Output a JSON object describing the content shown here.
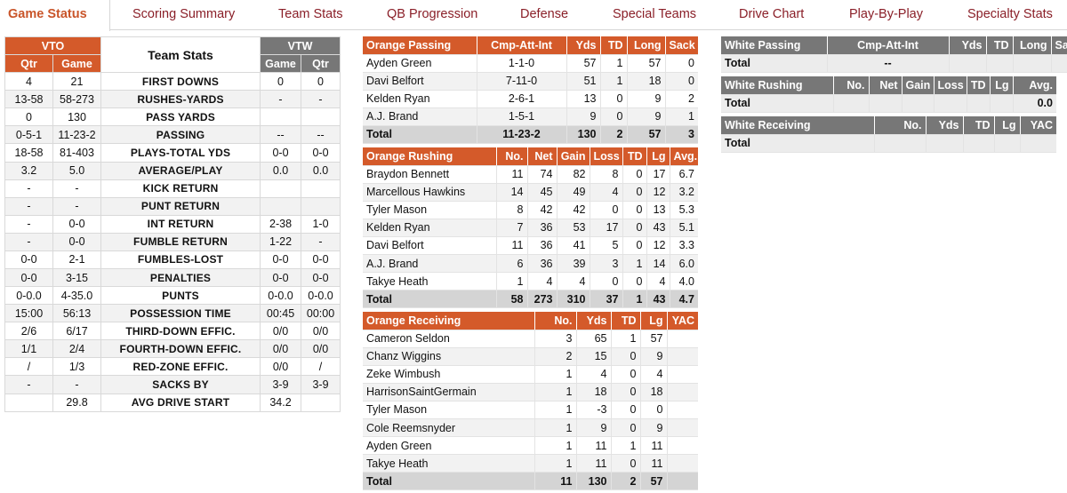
{
  "tabs": [
    {
      "label": "Game Status",
      "active": true
    },
    {
      "label": "Scoring Summary"
    },
    {
      "label": "Team Stats"
    },
    {
      "label": "QB Progression"
    },
    {
      "label": "Defense"
    },
    {
      "label": "Special Teams"
    },
    {
      "label": "Drive Chart"
    },
    {
      "label": "Play-By-Play"
    },
    {
      "label": "Specialty Stats"
    }
  ],
  "team_stats": {
    "title": "Team Stats",
    "home": {
      "abbr": "VTO",
      "qtr_label": "Qtr",
      "game_label": "Game"
    },
    "away": {
      "abbr": "VTW",
      "game_label": "Game",
      "qtr_label": "Qtr"
    },
    "rows": [
      {
        "hq": "4",
        "hg": "21",
        "label": "FIRST DOWNS",
        "ag": "0",
        "aq": "0"
      },
      {
        "hq": "13-58",
        "hg": "58-273",
        "label": "RUSHES-YARDS",
        "ag": "-",
        "aq": "-"
      },
      {
        "hq": "0",
        "hg": "130",
        "label": "PASS YARDS",
        "ag": "",
        "aq": ""
      },
      {
        "hq": "0-5-1",
        "hg": "11-23-2",
        "label": "PASSING",
        "ag": "--",
        "aq": "--"
      },
      {
        "hq": "18-58",
        "hg": "81-403",
        "label": "PLAYS-TOTAL YDS",
        "ag": "0-0",
        "aq": "0-0"
      },
      {
        "hq": "3.2",
        "hg": "5.0",
        "label": "AVERAGE/PLAY",
        "ag": "0.0",
        "aq": "0.0"
      },
      {
        "hq": "-",
        "hg": "-",
        "label": "KICK RETURN",
        "ag": "",
        "aq": ""
      },
      {
        "hq": "-",
        "hg": "-",
        "label": "PUNT RETURN",
        "ag": "",
        "aq": ""
      },
      {
        "hq": "-",
        "hg": "0-0",
        "label": "INT RETURN",
        "ag": "2-38",
        "aq": "1-0"
      },
      {
        "hq": "-",
        "hg": "0-0",
        "label": "FUMBLE RETURN",
        "ag": "1-22",
        "aq": "-"
      },
      {
        "hq": "0-0",
        "hg": "2-1",
        "label": "FUMBLES-LOST",
        "ag": "0-0",
        "aq": "0-0"
      },
      {
        "hq": "0-0",
        "hg": "3-15",
        "label": "PENALTIES",
        "ag": "0-0",
        "aq": "0-0"
      },
      {
        "hq": "0-0.0",
        "hg": "4-35.0",
        "label": "PUNTS",
        "ag": "0-0.0",
        "aq": "0-0.0"
      },
      {
        "hq": "15:00",
        "hg": "56:13",
        "label": "POSSESSION TIME",
        "ag": "00:45",
        "aq": "00:00"
      },
      {
        "hq": "2/6",
        "hg": "6/17",
        "label": "THIRD-DOWN EFFIC.",
        "ag": "0/0",
        "aq": "0/0"
      },
      {
        "hq": "1/1",
        "hg": "2/4",
        "label": "FOURTH-DOWN EFFIC.",
        "ag": "0/0",
        "aq": "0/0"
      },
      {
        "hq": "/",
        "hg": "1/3",
        "label": "RED-ZONE EFFIC.",
        "ag": "0/0",
        "aq": "/"
      },
      {
        "hq": "-",
        "hg": "-",
        "label": "SACKS BY",
        "ag": "3-9",
        "aq": "3-9"
      },
      {
        "hq": "",
        "hg": "29.8",
        "label": "AVG DRIVE START",
        "ag": "34.2",
        "aq": ""
      }
    ]
  },
  "orange_passing": {
    "headers": [
      "Orange Passing",
      "Cmp-Att-Int",
      "Yds",
      "TD",
      "Long",
      "Sack"
    ],
    "rows": [
      [
        "Ayden Green",
        "1-1-0",
        "57",
        "1",
        "57",
        "0"
      ],
      [
        "Davi Belfort",
        "7-11-0",
        "51",
        "1",
        "18",
        "0"
      ],
      [
        "Kelden Ryan",
        "2-6-1",
        "13",
        "0",
        "9",
        "2"
      ],
      [
        "A.J. Brand",
        "1-5-1",
        "9",
        "0",
        "9",
        "1"
      ]
    ],
    "total": [
      "Total",
      "11-23-2",
      "130",
      "2",
      "57",
      "3"
    ]
  },
  "orange_rushing": {
    "headers": [
      "Orange Rushing",
      "No.",
      "Net",
      "Gain",
      "Loss",
      "TD",
      "Lg",
      "Avg."
    ],
    "rows": [
      [
        "Braydon Bennett",
        "11",
        "74",
        "82",
        "8",
        "0",
        "17",
        "6.7"
      ],
      [
        "Marcellous Hawkins",
        "14",
        "45",
        "49",
        "4",
        "0",
        "12",
        "3.2"
      ],
      [
        "Tyler Mason",
        "8",
        "42",
        "42",
        "0",
        "0",
        "13",
        "5.3"
      ],
      [
        "Kelden Ryan",
        "7",
        "36",
        "53",
        "17",
        "0",
        "43",
        "5.1"
      ],
      [
        "Davi Belfort",
        "11",
        "36",
        "41",
        "5",
        "0",
        "12",
        "3.3"
      ],
      [
        "A.J. Brand",
        "6",
        "36",
        "39",
        "3",
        "1",
        "14",
        "6.0"
      ],
      [
        "Takye Heath",
        "1",
        "4",
        "4",
        "0",
        "0",
        "4",
        "4.0"
      ]
    ],
    "total": [
      "Total",
      "58",
      "273",
      "310",
      "37",
      "1",
      "43",
      "4.7"
    ]
  },
  "orange_receiving": {
    "headers": [
      "Orange Receiving",
      "No.",
      "Yds",
      "TD",
      "Lg",
      "YAC"
    ],
    "rows": [
      [
        "Cameron Seldon",
        "3",
        "65",
        "1",
        "57",
        ""
      ],
      [
        "Chanz Wiggins",
        "2",
        "15",
        "0",
        "9",
        ""
      ],
      [
        "Zeke Wimbush",
        "1",
        "4",
        "0",
        "4",
        ""
      ],
      [
        "HarrisonSaintGermain",
        "1",
        "18",
        "0",
        "18",
        ""
      ],
      [
        "Tyler Mason",
        "1",
        "-3",
        "0",
        "0",
        ""
      ],
      [
        "Cole Reemsnyder",
        "1",
        "9",
        "0",
        "9",
        ""
      ],
      [
        "Ayden Green",
        "1",
        "11",
        "1",
        "11",
        ""
      ],
      [
        "Takye Heath",
        "1",
        "11",
        "0",
        "11",
        ""
      ]
    ],
    "total": [
      "Total",
      "11",
      "130",
      "2",
      "57",
      ""
    ]
  },
  "white_passing": {
    "headers": [
      "White Passing",
      "Cmp-Att-Int",
      "Yds",
      "TD",
      "Long",
      "Sack"
    ],
    "total": [
      "Total",
      "--",
      "",
      "",
      "",
      ""
    ]
  },
  "white_rushing": {
    "headers": [
      "White Rushing",
      "No.",
      "Net",
      "Gain",
      "Loss",
      "TD",
      "Lg",
      "Avg."
    ],
    "total": [
      "Total",
      "",
      "",
      "",
      "",
      "",
      "",
      "0.0"
    ]
  },
  "white_receiving": {
    "headers": [
      "White Receiving",
      "No.",
      "Yds",
      "TD",
      "Lg",
      "YAC"
    ],
    "total": [
      "Total",
      "",
      "",
      "",
      "",
      ""
    ]
  }
}
